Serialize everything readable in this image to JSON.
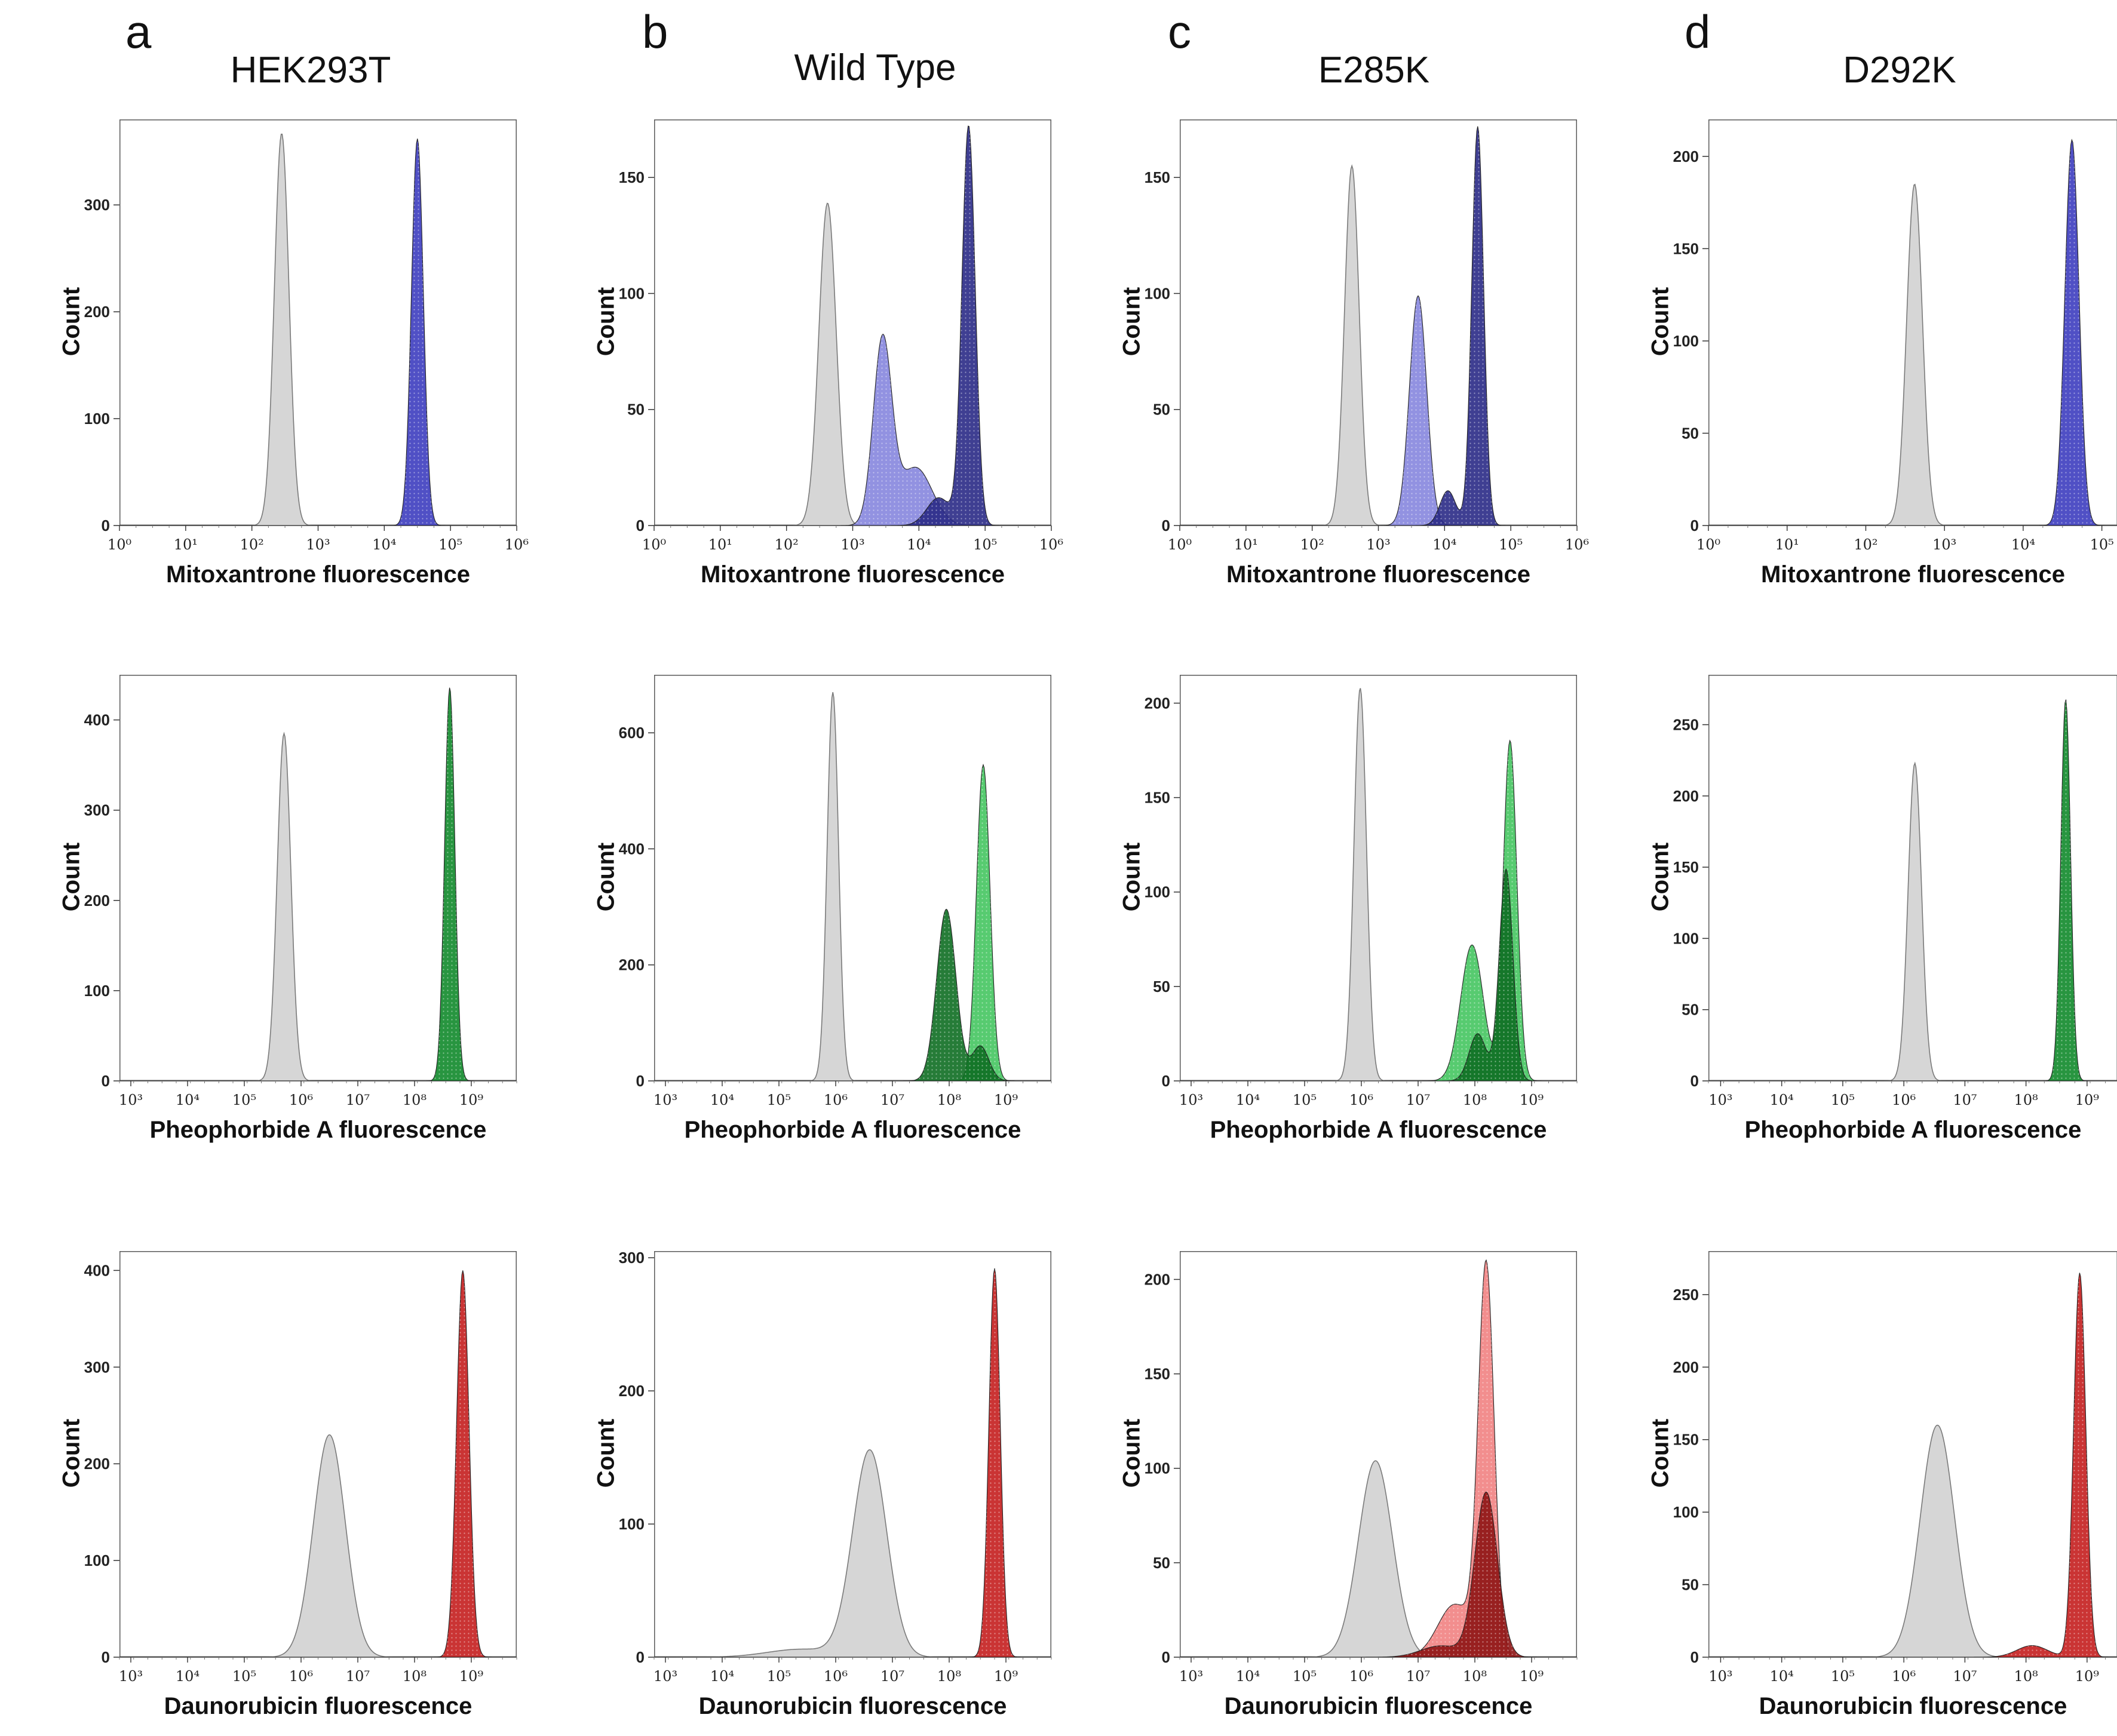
{
  "colors": {
    "control_fill": "#d6d6d6",
    "control_stroke": "#7a7a7a",
    "mitoxantrone_light": "#7f7fdc",
    "mitoxantrone_dark": "#2a2a86",
    "mitoxantrone_main": "#3d3dbf",
    "pheophorbide_light": "#39c257",
    "pheophorbide_dark": "#0e6e22",
    "pheophorbide_main": "#118a2b",
    "daunorubicin_light": "#f07a7a",
    "daunorubicin_dark": "#8e1414",
    "daunorubicin_main": "#c41e1e"
  },
  "columns": [
    {
      "letter": "a",
      "title": "HEK293T"
    },
    {
      "letter": "b",
      "title": "Wild Type"
    },
    {
      "letter": "c",
      "title": "E285K"
    },
    {
      "letter": "d",
      "title": "D292K"
    }
  ],
  "chart_data": [
    {
      "id": "a1",
      "type": "area",
      "col": 0,
      "row": 0,
      "dye": "mitoxantrone",
      "xlabel": "Mitoxantrone fluorescence",
      "ylabel": "Count",
      "xlim": [
        0,
        6
      ],
      "xtick_exponents": [
        0,
        1,
        2,
        3,
        4,
        5,
        6
      ],
      "ylim": [
        0,
        380
      ],
      "yticks": [
        0,
        100,
        200,
        300
      ],
      "series": [
        {
          "name": "control",
          "role": "control",
          "peaks": [
            [
              2.45,
              0.11,
              367
            ]
          ]
        },
        {
          "name": "main",
          "role": "main",
          "peaks": [
            [
              4.5,
              0.09,
              362
            ]
          ]
        }
      ]
    },
    {
      "id": "b1",
      "type": "area",
      "col": 1,
      "row": 0,
      "dye": "mitoxantrone",
      "xlabel": "Mitoxantrone fluorescence",
      "ylabel": "Count",
      "xlim": [
        0,
        6
      ],
      "xtick_exponents": [
        0,
        1,
        2,
        3,
        4,
        5,
        6
      ],
      "ylim": [
        0,
        175
      ],
      "yticks": [
        0,
        50,
        100,
        150
      ],
      "series": [
        {
          "name": "control",
          "role": "control",
          "peaks": [
            [
              2.62,
              0.13,
              139
            ]
          ]
        },
        {
          "name": "light",
          "role": "light",
          "peaks": [
            [
              3.45,
              0.14,
              79
            ],
            [
              3.95,
              0.25,
              25
            ]
          ]
        },
        {
          "name": "dark",
          "role": "dark",
          "peaks": [
            [
              4.75,
              0.1,
              172
            ],
            [
              4.3,
              0.18,
              12
            ]
          ]
        }
      ]
    },
    {
      "id": "c1",
      "type": "area",
      "col": 2,
      "row": 0,
      "dye": "mitoxantrone",
      "xlabel": "Mitoxantrone fluorescence",
      "ylabel": "Count",
      "xlim": [
        0,
        6
      ],
      "xtick_exponents": [
        0,
        1,
        2,
        3,
        4,
        5,
        6
      ],
      "ylim": [
        0,
        175
      ],
      "yticks": [
        0,
        50,
        100,
        150
      ],
      "series": [
        {
          "name": "control",
          "role": "control",
          "peaks": [
            [
              2.6,
              0.11,
              155
            ]
          ]
        },
        {
          "name": "light",
          "role": "light",
          "peaks": [
            [
              3.6,
              0.13,
              99
            ]
          ]
        },
        {
          "name": "dark",
          "role": "dark",
          "peaks": [
            [
              4.5,
              0.09,
              172
            ],
            [
              4.05,
              0.12,
              15
            ]
          ]
        }
      ]
    },
    {
      "id": "d1",
      "type": "area",
      "col": 3,
      "row": 0,
      "dye": "mitoxantrone",
      "xlabel": "Mitoxantrone fluorescence",
      "ylabel": "Count",
      "xlim": [
        0,
        5.2
      ],
      "xtick_exponents": [
        0,
        1,
        2,
        3,
        4,
        5
      ],
      "ylim": [
        0,
        220
      ],
      "yticks": [
        0,
        50,
        100,
        150,
        200
      ],
      "series": [
        {
          "name": "control",
          "role": "control",
          "peaks": [
            [
              2.62,
              0.1,
              185
            ]
          ]
        },
        {
          "name": "main",
          "role": "main",
          "peaks": [
            [
              4.62,
              0.09,
              209
            ]
          ]
        }
      ]
    },
    {
      "id": "a2",
      "type": "area",
      "col": 0,
      "row": 1,
      "dye": "pheophorbide",
      "xlabel": "Pheophorbide A fluorescence",
      "ylabel": "Count",
      "xlim": [
        2.8,
        9.8
      ],
      "xtick_exponents": [
        3,
        4,
        5,
        6,
        7,
        8,
        9
      ],
      "ylim": [
        0,
        450
      ],
      "yticks": [
        0,
        100,
        200,
        300,
        400
      ],
      "series": [
        {
          "name": "control",
          "role": "control",
          "peaks": [
            [
              5.7,
              0.12,
              385
            ]
          ]
        },
        {
          "name": "main",
          "role": "main",
          "peaks": [
            [
              8.62,
              0.09,
              436
            ]
          ]
        }
      ]
    },
    {
      "id": "b2",
      "type": "area",
      "col": 1,
      "row": 1,
      "dye": "pheophorbide",
      "xlabel": "Pheophorbide A fluorescence",
      "ylabel": "Count",
      "xlim": [
        2.8,
        9.8
      ],
      "xtick_exponents": [
        3,
        4,
        5,
        6,
        7,
        8,
        9
      ],
      "ylim": [
        0,
        700
      ],
      "yticks": [
        0,
        200,
        400,
        600
      ],
      "series": [
        {
          "name": "control",
          "role": "control",
          "peaks": [
            [
              5.95,
              0.1,
              670
            ]
          ]
        },
        {
          "name": "light",
          "role": "light",
          "peaks": [
            [
              8.6,
              0.12,
              545
            ]
          ]
        },
        {
          "name": "dark",
          "role": "dark",
          "peaks": [
            [
              7.95,
              0.17,
              296
            ],
            [
              8.55,
              0.15,
              60
            ]
          ]
        }
      ]
    },
    {
      "id": "c2",
      "type": "area",
      "col": 2,
      "row": 1,
      "dye": "pheophorbide",
      "xlabel": "Pheophorbide A fluorescence",
      "ylabel": "Count",
      "xlim": [
        2.8,
        9.8
      ],
      "xtick_exponents": [
        3,
        4,
        5,
        6,
        7,
        8,
        9
      ],
      "ylim": [
        0,
        215
      ],
      "yticks": [
        0,
        50,
        100,
        150,
        200
      ],
      "series": [
        {
          "name": "control",
          "role": "control",
          "peaks": [
            [
              5.98,
              0.11,
              208
            ]
          ]
        },
        {
          "name": "light",
          "role": "light",
          "peaks": [
            [
              8.62,
              0.12,
              180
            ],
            [
              7.95,
              0.2,
              72
            ]
          ]
        },
        {
          "name": "dark",
          "role": "dark",
          "peaks": [
            [
              8.55,
              0.12,
              112
            ],
            [
              8.05,
              0.15,
              25
            ]
          ]
        }
      ]
    },
    {
      "id": "d2",
      "type": "area",
      "col": 3,
      "row": 1,
      "dye": "pheophorbide",
      "xlabel": "Pheophorbide A fluorescence",
      "ylabel": "Count",
      "xlim": [
        2.8,
        9.5
      ],
      "xtick_exponents": [
        3,
        4,
        5,
        6,
        7,
        8,
        9
      ],
      "ylim": [
        0,
        285
      ],
      "yticks": [
        0,
        50,
        100,
        150,
        200,
        250
      ],
      "series": [
        {
          "name": "control",
          "role": "control",
          "peaks": [
            [
              6.18,
              0.11,
              223
            ]
          ]
        },
        {
          "name": "main",
          "role": "main",
          "peaks": [
            [
              8.65,
              0.08,
              268
            ]
          ]
        }
      ]
    },
    {
      "id": "a3",
      "type": "area",
      "col": 0,
      "row": 2,
      "dye": "daunorubicin",
      "xlabel": "Daunorubicin fluorescence",
      "ylabel": "Count",
      "xlim": [
        2.8,
        9.8
      ],
      "xtick_exponents": [
        3,
        4,
        5,
        6,
        7,
        8,
        9
      ],
      "ylim": [
        0,
        420
      ],
      "yticks": [
        0,
        100,
        200,
        300,
        400
      ],
      "series": [
        {
          "name": "control",
          "role": "control",
          "peaks": [
            [
              6.5,
              0.28,
              230
            ]
          ]
        },
        {
          "name": "main",
          "role": "main",
          "peaks": [
            [
              8.85,
              0.11,
              400
            ]
          ]
        }
      ]
    },
    {
      "id": "b3",
      "type": "area",
      "col": 1,
      "row": 2,
      "dye": "daunorubicin",
      "xlabel": "Daunorubicin fluorescence",
      "ylabel": "Count",
      "xlim": [
        2.8,
        9.8
      ],
      "xtick_exponents": [
        3,
        4,
        5,
        6,
        7,
        8,
        9
      ],
      "ylim": [
        0,
        305
      ],
      "yticks": [
        0,
        100,
        200,
        300
      ],
      "series": [
        {
          "name": "control",
          "role": "control",
          "peaks": [
            [
              6.6,
              0.3,
              155
            ],
            [
              5.4,
              0.6,
              6
            ]
          ]
        },
        {
          "name": "main",
          "role": "main",
          "peaks": [
            [
              8.8,
              0.1,
              292
            ]
          ]
        }
      ]
    },
    {
      "id": "c3",
      "type": "area",
      "col": 2,
      "row": 2,
      "dye": "daunorubicin",
      "xlabel": "Daunorubicin fluorescence",
      "ylabel": "Count",
      "xlim": [
        2.8,
        9.8
      ],
      "xtick_exponents": [
        3,
        4,
        5,
        6,
        7,
        8,
        9
      ],
      "ylim": [
        0,
        215
      ],
      "yticks": [
        0,
        50,
        100,
        150,
        200
      ],
      "series": [
        {
          "name": "control",
          "role": "control",
          "peaks": [
            [
              6.25,
              0.3,
              104
            ]
          ]
        },
        {
          "name": "light",
          "role": "light",
          "peaks": [
            [
              8.2,
              0.14,
              205
            ],
            [
              7.65,
              0.3,
              28
            ]
          ]
        },
        {
          "name": "dark",
          "role": "dark",
          "peaks": [
            [
              8.2,
              0.2,
              87
            ],
            [
              7.4,
              0.35,
              6
            ]
          ]
        }
      ]
    },
    {
      "id": "d3",
      "type": "area",
      "col": 3,
      "row": 2,
      "dye": "daunorubicin",
      "xlabel": "Daunorubicin fluorescence",
      "ylabel": "Count",
      "xlim": [
        2.8,
        9.5
      ],
      "xtick_exponents": [
        3,
        4,
        5,
        6,
        7,
        8,
        9
      ],
      "ylim": [
        0,
        280
      ],
      "yticks": [
        0,
        50,
        100,
        150,
        200,
        250
      ],
      "series": [
        {
          "name": "control",
          "role": "control",
          "peaks": [
            [
              6.55,
              0.28,
              160
            ]
          ]
        },
        {
          "name": "main",
          "role": "main",
          "peaks": [
            [
              8.88,
              0.1,
              265
            ],
            [
              8.1,
              0.25,
              8
            ]
          ]
        }
      ]
    }
  ]
}
